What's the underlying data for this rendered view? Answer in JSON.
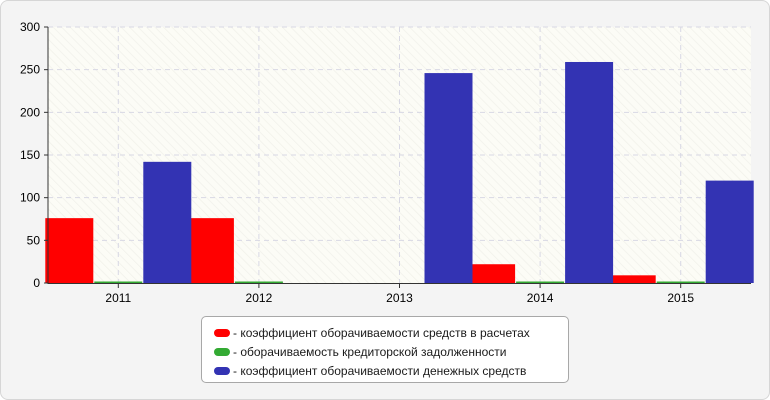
{
  "chart_data": {
    "type": "bar",
    "categories": [
      "2011",
      "2012",
      "2013",
      "2014",
      "2015"
    ],
    "series": [
      {
        "name": "коэффициент оборачиваемости средств в расчетах",
        "color": "#ff0000",
        "values": [
          76,
          76,
          0,
          22,
          9
        ]
      },
      {
        "name": "оборачиваемость кредиторской задолженности",
        "color": "#33aa33",
        "values": [
          1,
          1,
          0,
          1,
          1
        ]
      },
      {
        "name": "коэффициент оборачиваемости денежных средств",
        "color": "#3333b3",
        "values": [
          142,
          0,
          246,
          259,
          120
        ]
      }
    ],
    "ylim": [
      0,
      300
    ],
    "yticks": [
      "0",
      "50",
      "100",
      "150",
      "200",
      "250",
      "300"
    ],
    "grid": true,
    "legend_position": "bottom-center",
    "title": "",
    "xlabel": "",
    "ylabel": ""
  },
  "legend": {
    "items": [
      {
        "label": "- коэффициент оборачиваемости средств в расчетах",
        "color": "#ff0000"
      },
      {
        "label": "- оборачиваемость кредиторской задолженности",
        "color": "#33aa33"
      },
      {
        "label": "- коэффициент оборачиваемости денежных средств",
        "color": "#3333b3"
      }
    ]
  }
}
